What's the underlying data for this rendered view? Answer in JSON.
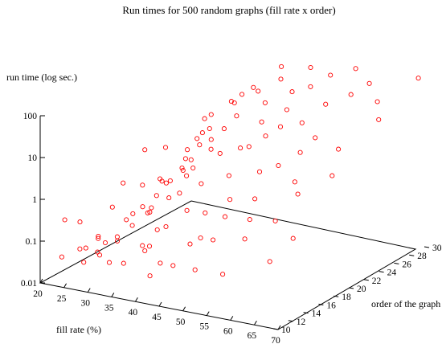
{
  "chart_data": {
    "type": "scatter",
    "title": "Run times for 500 random graphs (fill rate x order)",
    "xlabel": "fill rate (%)",
    "ylabel": "order of the graph",
    "zlabel": "run time (log sec.)",
    "xlim": [
      20,
      70
    ],
    "ylim": [
      10,
      30
    ],
    "zlim": [
      0.01,
      100
    ],
    "zscale": "log",
    "x_ticks": [
      "20",
      "25",
      "30",
      "35",
      "40",
      "45",
      "50",
      "55",
      "60",
      "65",
      "70"
    ],
    "y_ticks": [
      "10",
      "12",
      "14",
      "16",
      "18",
      "20",
      "22",
      "24",
      "26",
      "28",
      "30"
    ],
    "z_ticks": [
      "0.01",
      "0.1",
      "1",
      "10",
      "100"
    ],
    "marker": "open-circle",
    "point_color": "#ff0000",
    "point_count": 500,
    "series": [
      {
        "points": [
          [
            20.3,
            26.5,
            0.06
          ],
          [
            21.2,
            23.1,
            0.85
          ],
          [
            22.8,
            29.0,
            0.45
          ],
          [
            24.5,
            21.4,
            0.0455
          ],
          [
            26.0,
            27.7,
            0.98
          ],
          [
            21.7,
            14.2,
            0.122
          ],
          [
            23.5,
            18.0,
            0.025
          ],
          [
            25.8,
            11.6,
            0.061
          ],
          [
            27.1,
            24.3,
            0.32
          ],
          [
            28.4,
            16.9,
            0.077
          ],
          [
            29.2,
            20.8,
            2.45
          ],
          [
            20.9,
            12.3,
            0.026
          ],
          [
            22.3,
            27.0,
            0.034
          ],
          [
            23.9,
            10.8,
            0.33
          ],
          [
            25.1,
            25.7,
            0.185
          ],
          [
            26.6,
            15.4,
            0.27
          ],
          [
            27.8,
            19.6,
            0.084
          ],
          [
            29.6,
            13.1,
            0.025
          ],
          [
            30.4,
            22.7,
            0.91
          ],
          [
            31.3,
            28.6,
            5.45
          ],
          [
            32.7,
            17.5,
            0.066
          ],
          [
            21.4,
            20.1,
            0.27
          ],
          [
            23.0,
            15.8,
            0.041
          ],
          [
            24.8,
            29.4,
            0.79
          ],
          [
            26.3,
            18.3,
            0.096
          ],
          [
            27.6,
            12.8,
            0.043
          ],
          [
            29.0,
            26.1,
            3.57
          ],
          [
            30.8,
            14.6,
            0.2
          ],
          [
            31.9,
            23.6,
            1.72
          ],
          [
            33.2,
            11.9,
            0.129
          ],
          [
            34.4,
            20.3,
            0.75
          ],
          [
            22.1,
            24.8,
            0.107
          ],
          [
            23.6,
            13.5,
            0.017
          ],
          [
            25.4,
            22.0,
            0.108
          ],
          [
            27.2,
            28.1,
            2.6
          ],
          [
            28.8,
            10.5,
            0.096
          ],
          [
            30.1,
            17.2,
            0.22
          ],
          [
            31.5,
            25.4,
            1.5
          ],
          [
            32.9,
            19.1,
            0.69
          ],
          [
            34.0,
            27.9,
            11.7
          ],
          [
            35.3,
            13.9,
            0.071
          ],
          [
            20.6,
            17.3,
            0.023
          ],
          [
            22.6,
            21.9,
            0.17
          ],
          [
            24.1,
            26.9,
            0.42
          ],
          [
            25.9,
            14.9,
            0.041
          ],
          [
            27.4,
            21.2,
            0.36
          ],
          [
            28.9,
            29.7,
            4.08
          ],
          [
            30.6,
            11.2,
            0.061
          ],
          [
            32.2,
            22.3,
            1.03
          ],
          [
            33.7,
            16.1,
            0.32
          ],
          [
            35.0,
            24.9,
            3.66
          ],
          [
            36.1,
            10.9,
            0.055
          ],
          [
            37.2,
            19.4,
            1.63
          ],
          [
            38.5,
            27.2,
            20.6
          ],
          [
            39.6,
            14.3,
            0.23
          ],
          [
            40.8,
            23.4,
            2.39
          ],
          [
            41.9,
            12.1,
            0.057
          ],
          [
            43.1,
            28.8,
            17.6
          ],
          [
            44.2,
            16.6,
            0.37
          ],
          [
            45.3,
            21.7,
            4.76
          ],
          [
            46.6,
            25.9,
            15.1
          ],
          [
            36.7,
            22.1,
            2.42
          ],
          [
            37.9,
            13.2,
            0.092
          ],
          [
            39.1,
            29.9,
            44.6
          ],
          [
            40.2,
            18.6,
            0.96
          ],
          [
            41.4,
            26.3,
            15.4
          ],
          [
            42.6,
            10.3,
            0.044
          ],
          [
            43.8,
            20.0,
            1.31
          ],
          [
            45.0,
            14.1,
            0.122
          ],
          [
            46.2,
            29.3,
            70.0
          ],
          [
            47.5,
            17.8,
            0.7
          ],
          [
            35.6,
            28.4,
            16.6
          ],
          [
            36.9,
            16.4,
            0.61
          ],
          [
            38.1,
            24.6,
            9.27
          ],
          [
            39.3,
            11.7,
            0.108
          ],
          [
            40.5,
            20.9,
            3.07
          ],
          [
            41.7,
            28.2,
            37.7
          ],
          [
            42.9,
            15.0,
            0.57
          ],
          [
            44.0,
            24.2,
            9.88
          ],
          [
            45.7,
            11.4,
            0.071
          ],
          [
            46.9,
            22.9,
            7.08
          ],
          [
            48.0,
            13.6,
            0.223
          ],
          [
            49.2,
            27.4,
            43.6
          ],
          [
            50.4,
            19.9,
            2.33
          ],
          [
            51.6,
            10.6,
            0.091
          ],
          [
            52.8,
            24.0,
            15.5
          ],
          [
            54.0,
            17.0,
            1.21
          ],
          [
            55.2,
            29.6,
            98.0
          ],
          [
            56.4,
            21.5,
            6.4
          ],
          [
            57.6,
            13.4,
            0.36
          ],
          [
            58.8,
            26.7,
            54.4
          ],
          [
            48.6,
            23.8,
            10.5
          ],
          [
            49.8,
            15.7,
            0.49
          ],
          [
            51.0,
            28.9,
            64.4
          ],
          [
            52.2,
            12.6,
            0.31
          ],
          [
            53.4,
            20.5,
            3.34
          ],
          [
            54.6,
            26.0,
            30.0
          ],
          [
            55.8,
            15.2,
            0.64
          ],
          [
            57.0,
            23.1,
            10.3
          ],
          [
            58.2,
            10.1,
            0.112
          ],
          [
            59.4,
            18.9,
            2.65
          ],
          [
            60.6,
            28.0,
            82.1
          ],
          [
            61.8,
            14.8,
            0.88
          ],
          [
            63.0,
            22.4,
            8.76
          ],
          [
            64.2,
            26.8,
            47.2
          ],
          [
            65.4,
            11.8,
            0.223
          ],
          [
            66.6,
            19.3,
            4.93
          ],
          [
            67.8,
            24.7,
            33.9
          ],
          [
            69.0,
            29.2,
            129.0
          ],
          [
            62.4,
            17.4,
            2.21
          ],
          [
            68.4,
            13.0,
            0.71
          ]
        ]
      }
    ]
  }
}
